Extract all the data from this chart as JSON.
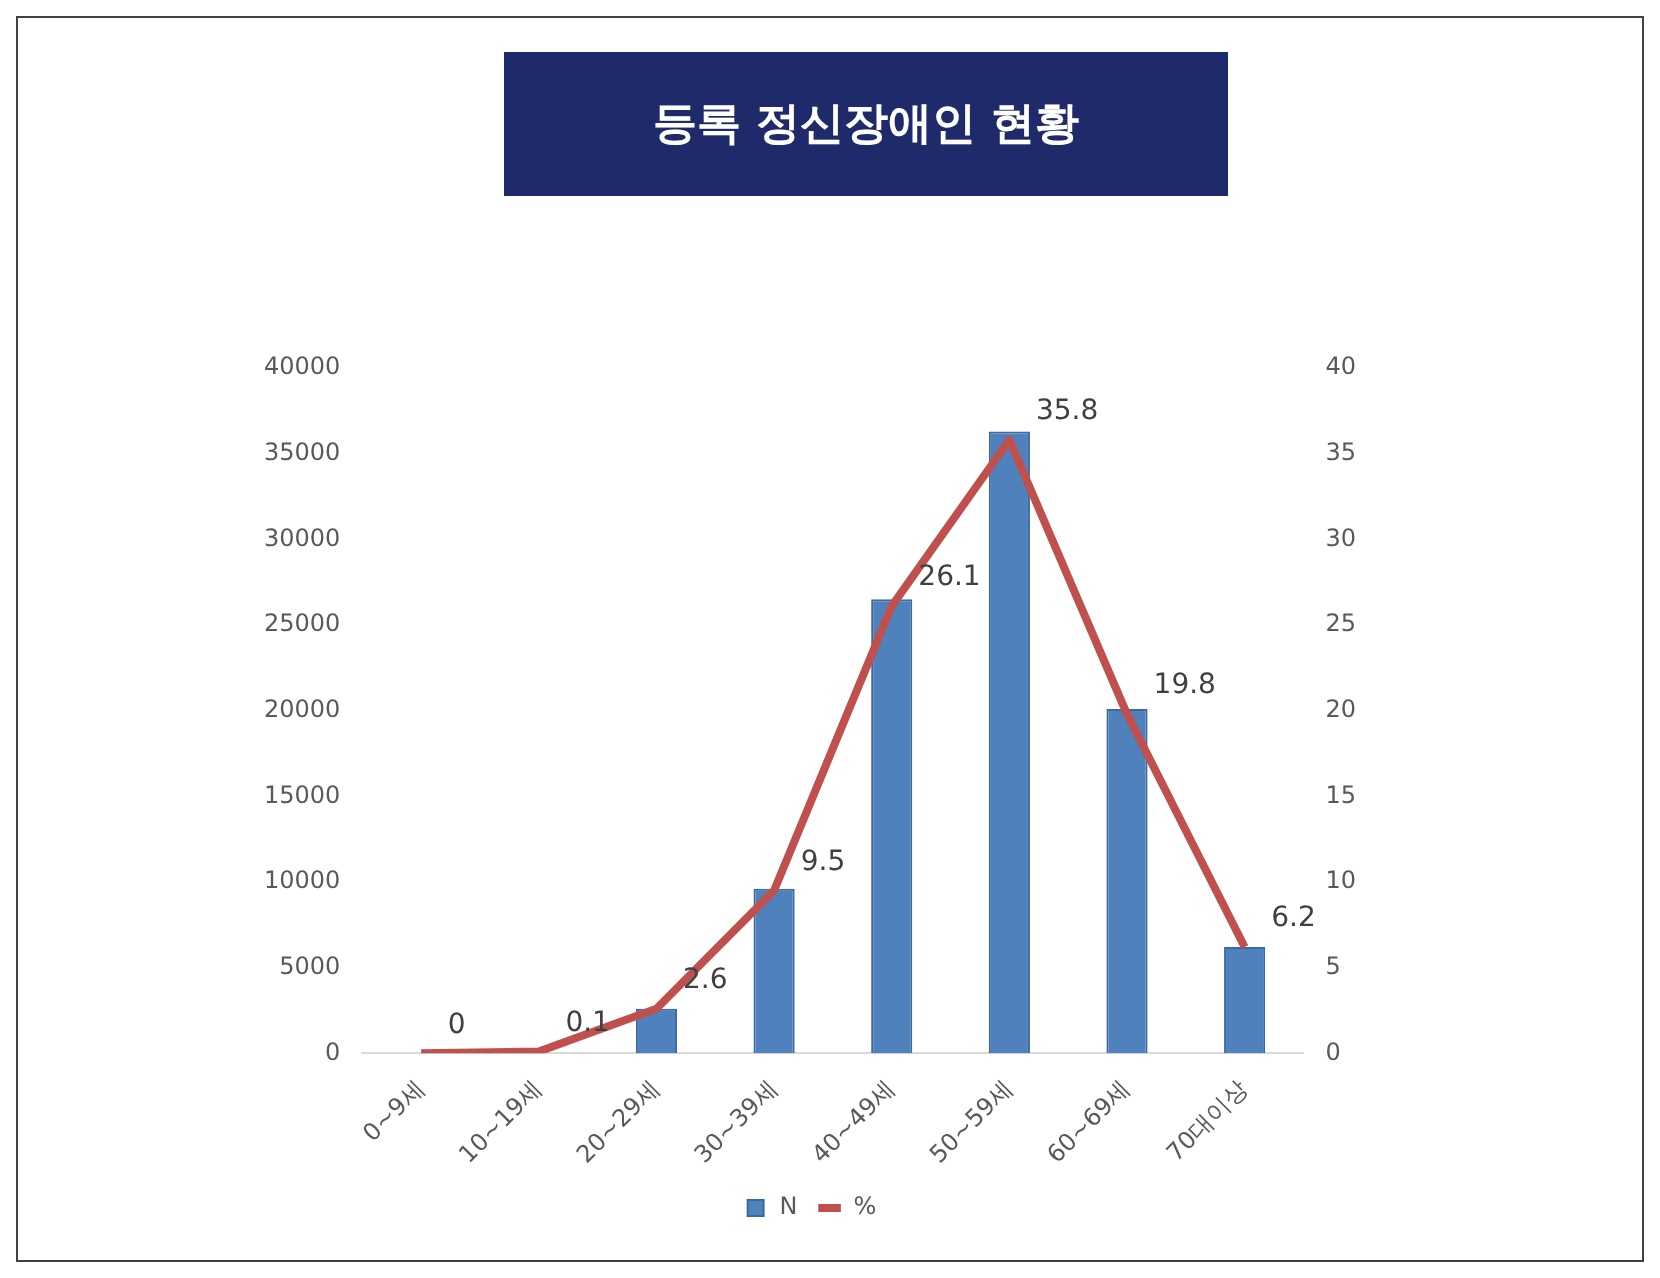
{
  "chart_data": {
    "type": "bar",
    "title": "등록 정신장애인 현황",
    "categories": [
      "0~9세",
      "10~19세",
      "20~29세",
      "30~39세",
      "40~49세",
      "50~59세",
      "60~69세",
      "70대이상"
    ],
    "series": [
      {
        "name": "N",
        "color": "#4f81bd",
        "values": [
          0,
          null,
          2600,
          9600,
          26500,
          36300,
          20100,
          6200
        ]
      },
      {
        "name": "%",
        "type": "line",
        "axis": "y2",
        "color": "#c0504d",
        "values": [
          0,
          0.1,
          2.6,
          9.5,
          26.1,
          35.8,
          19.8,
          6.2
        ],
        "value_labels": [
          "0",
          "0.1",
          "2.6",
          "9.5",
          "26.1",
          "35.8",
          "19.8",
          "6.2"
        ]
      }
    ],
    "ylim": [
      0,
      40000
    ],
    "yticks": [
      0,
      5000,
      10000,
      15000,
      20000,
      25000,
      30000,
      35000,
      40000
    ],
    "y2lim": [
      0,
      40
    ],
    "y2ticks": [
      0,
      5,
      10,
      15,
      20,
      25,
      30,
      35,
      40
    ],
    "grid": false,
    "legend": "bottom",
    "marker": "none"
  }
}
